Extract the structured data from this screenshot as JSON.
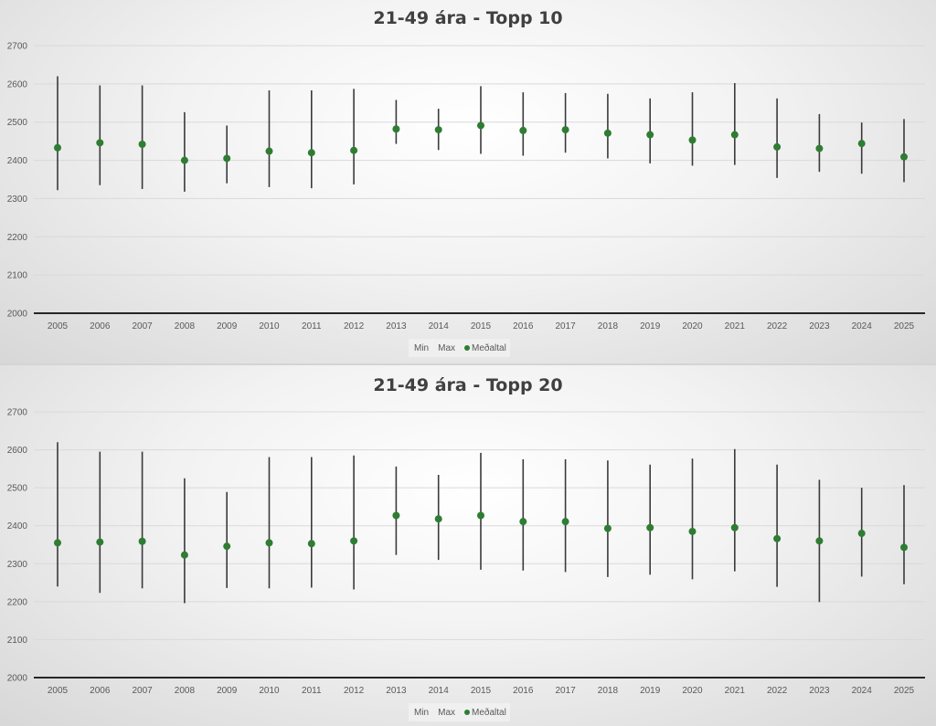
{
  "colors": {
    "marker": "#2e7d32",
    "whisker": "#3a3a3a",
    "grid": "#d9d9d9",
    "axis": "#262626"
  },
  "chart_data": [
    {
      "type": "scatter",
      "title": "21-49 ára - Topp 10",
      "categories": [
        "2005",
        "2006",
        "2007",
        "2008",
        "2009",
        "2010",
        "2011",
        "2012",
        "2013",
        "2014",
        "2015",
        "2016",
        "2017",
        "2018",
        "2019",
        "2020",
        "2021",
        "2022",
        "2023",
        "2024",
        "2025"
      ],
      "ylim": [
        2000,
        2700
      ],
      "yticks": [
        "2000",
        "2100",
        "2200",
        "2300",
        "2400",
        "2500",
        "2600",
        "2700"
      ],
      "grid": true,
      "legend_position": "bottom",
      "legend": [
        {
          "name": "Min",
          "marker": ""
        },
        {
          "name": "Max",
          "marker": ""
        },
        {
          "name": "Meðaltal",
          "marker": "circle"
        }
      ],
      "series": [
        {
          "name": "Min",
          "values": [
            2322,
            2335,
            2325,
            2318,
            2340,
            2330,
            2327,
            2337,
            2443,
            2427,
            2417,
            2412,
            2420,
            2405,
            2392,
            2386,
            2388,
            2354,
            2370,
            2365,
            2343
          ]
        },
        {
          "name": "Max",
          "values": [
            2620,
            2596,
            2596,
            2526,
            2491,
            2583,
            2583,
            2587,
            2558,
            2535,
            2594,
            2578,
            2576,
            2574,
            2562,
            2578,
            2602,
            2562,
            2521,
            2499,
            2508
          ]
        },
        {
          "name": "Meðaltal",
          "values": [
            2433,
            2446,
            2442,
            2400,
            2405,
            2424,
            2420,
            2426,
            2482,
            2480,
            2491,
            2478,
            2480,
            2471,
            2467,
            2453,
            2467,
            2435,
            2431,
            2444,
            2409
          ]
        }
      ]
    },
    {
      "type": "scatter",
      "title": "21-49 ára - Topp 20",
      "categories": [
        "2005",
        "2006",
        "2007",
        "2008",
        "2009",
        "2010",
        "2011",
        "2012",
        "2013",
        "2014",
        "2015",
        "2016",
        "2017",
        "2018",
        "2019",
        "2020",
        "2021",
        "2022",
        "2023",
        "2024",
        "2025"
      ],
      "ylim": [
        2000,
        2700
      ],
      "yticks": [
        "2000",
        "2100",
        "2200",
        "2300",
        "2400",
        "2500",
        "2600",
        "2700"
      ],
      "grid": true,
      "legend_position": "bottom",
      "legend": [
        {
          "name": "Min",
          "marker": ""
        },
        {
          "name": "Max",
          "marker": ""
        },
        {
          "name": "Meðaltal",
          "marker": "circle"
        }
      ],
      "series": [
        {
          "name": "Min",
          "values": [
            2240,
            2223,
            2235,
            2196,
            2236,
            2235,
            2237,
            2232,
            2323,
            2310,
            2284,
            2282,
            2278,
            2265,
            2271,
            2259,
            2280,
            2239,
            2199,
            2266,
            2246
          ]
        },
        {
          "name": "Max",
          "values": [
            2620,
            2595,
            2595,
            2525,
            2489,
            2581,
            2581,
            2585,
            2556,
            2534,
            2592,
            2575,
            2575,
            2572,
            2561,
            2577,
            2602,
            2561,
            2521,
            2500,
            2507
          ]
        },
        {
          "name": "Meðaltal",
          "values": [
            2355,
            2357,
            2359,
            2323,
            2346,
            2355,
            2353,
            2360,
            2427,
            2418,
            2427,
            2411,
            2411,
            2393,
            2395,
            2385,
            2395,
            2366,
            2360,
            2380,
            2343
          ]
        }
      ]
    }
  ]
}
